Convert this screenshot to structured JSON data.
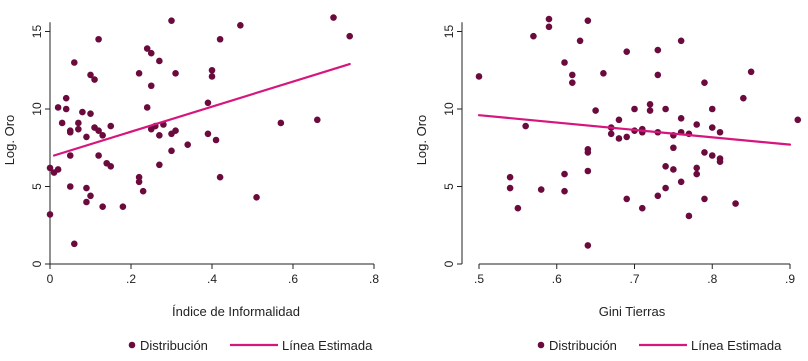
{
  "colors": {
    "points": "#6b0a3c",
    "fit_line": "#d6157d",
    "axis": "#222222"
  },
  "chart_data": [
    {
      "type": "scatter",
      "xlabel": "Índice de Informalidad",
      "ylabel": "Log. Oro",
      "xlim": [
        0,
        0.8
      ],
      "ylim": [
        0,
        16
      ],
      "x_ticks": [
        0,
        0.2,
        0.4,
        0.6,
        0.8
      ],
      "x_tick_labels": [
        "0",
        ".2",
        ".4",
        ".6",
        ".8"
      ],
      "y_ticks": [
        0,
        5,
        10,
        15
      ],
      "y_tick_labels": [
        "0",
        "5",
        "10",
        "15"
      ],
      "grid": false,
      "legend": {
        "placement": "bottom",
        "entries": [
          "Distribución",
          "Línea Estimada"
        ]
      },
      "series": [
        {
          "name": "Distribución",
          "kind": "points",
          "points": [
            [
              0.0,
              6.2
            ],
            [
              0.0,
              3.2
            ],
            [
              0.01,
              5.9
            ],
            [
              0.02,
              6.1
            ],
            [
              0.02,
              10.1
            ],
            [
              0.03,
              9.1
            ],
            [
              0.04,
              10.7
            ],
            [
              0.04,
              10.0
            ],
            [
              0.05,
              8.6
            ],
            [
              0.05,
              8.5
            ],
            [
              0.05,
              7.0
            ],
            [
              0.05,
              5.0
            ],
            [
              0.06,
              13.0
            ],
            [
              0.06,
              1.3
            ],
            [
              0.07,
              9.1
            ],
            [
              0.07,
              8.7
            ],
            [
              0.08,
              9.8
            ],
            [
              0.09,
              8.2
            ],
            [
              0.09,
              4.9
            ],
            [
              0.09,
              4.0
            ],
            [
              0.1,
              9.7
            ],
            [
              0.1,
              12.2
            ],
            [
              0.1,
              4.4
            ],
            [
              0.11,
              8.8
            ],
            [
              0.11,
              11.9
            ],
            [
              0.12,
              8.6
            ],
            [
              0.12,
              7.0
            ],
            [
              0.12,
              14.5
            ],
            [
              0.13,
              3.7
            ],
            [
              0.13,
              8.3
            ],
            [
              0.14,
              6.5
            ],
            [
              0.15,
              8.9
            ],
            [
              0.15,
              6.3
            ],
            [
              0.18,
              3.7
            ],
            [
              0.22,
              12.3
            ],
            [
              0.22,
              5.6
            ],
            [
              0.22,
              5.3
            ],
            [
              0.23,
              4.7
            ],
            [
              0.24,
              13.9
            ],
            [
              0.24,
              10.1
            ],
            [
              0.25,
              13.6
            ],
            [
              0.25,
              11.5
            ],
            [
              0.25,
              8.7
            ],
            [
              0.26,
              8.9
            ],
            [
              0.27,
              8.3
            ],
            [
              0.27,
              13.1
            ],
            [
              0.27,
              6.4
            ],
            [
              0.28,
              9.0
            ],
            [
              0.3,
              15.7
            ],
            [
              0.3,
              8.4
            ],
            [
              0.3,
              7.3
            ],
            [
              0.31,
              12.3
            ],
            [
              0.31,
              8.6
            ],
            [
              0.34,
              7.7
            ],
            [
              0.39,
              10.4
            ],
            [
              0.39,
              8.4
            ],
            [
              0.4,
              12.5
            ],
            [
              0.4,
              12.1
            ],
            [
              0.41,
              8.0
            ],
            [
              0.42,
              14.5
            ],
            [
              0.42,
              5.6
            ],
            [
              0.47,
              15.4
            ],
            [
              0.51,
              4.3
            ],
            [
              0.57,
              9.1
            ],
            [
              0.66,
              9.3
            ],
            [
              0.7,
              15.9
            ],
            [
              0.74,
              14.7
            ]
          ]
        },
        {
          "name": "Línea Estimada",
          "kind": "line",
          "points": [
            [
              0.01,
              7.0
            ],
            [
              0.74,
              12.9
            ]
          ]
        }
      ]
    },
    {
      "type": "scatter",
      "xlabel": "Gini Tierras",
      "ylabel": "Log. Oro",
      "xlim": [
        0.5,
        0.9
      ],
      "ylim": [
        0,
        16
      ],
      "x_ticks": [
        0.5,
        0.6,
        0.7,
        0.8,
        0.9
      ],
      "x_tick_labels": [
        ".5",
        ".6",
        ".7",
        ".8",
        ".9"
      ],
      "y_ticks": [
        0,
        5,
        10,
        15
      ],
      "y_tick_labels": [
        "0",
        "5",
        "10",
        "15"
      ],
      "grid": false,
      "legend": {
        "placement": "bottom",
        "entries": [
          "Distribución",
          "Línea Estimada"
        ]
      },
      "series": [
        {
          "name": "Distribución",
          "kind": "points",
          "points": [
            [
              0.5,
              12.1
            ],
            [
              0.54,
              5.6
            ],
            [
              0.54,
              4.9
            ],
            [
              0.55,
              3.6
            ],
            [
              0.56,
              8.9
            ],
            [
              0.57,
              14.7
            ],
            [
              0.58,
              4.8
            ],
            [
              0.59,
              15.8
            ],
            [
              0.59,
              15.3
            ],
            [
              0.61,
              13.0
            ],
            [
              0.61,
              5.8
            ],
            [
              0.61,
              4.7
            ],
            [
              0.62,
              12.2
            ],
            [
              0.62,
              11.7
            ],
            [
              0.63,
              14.4
            ],
            [
              0.64,
              7.4
            ],
            [
              0.64,
              7.2
            ],
            [
              0.64,
              6.0
            ],
            [
              0.64,
              15.7
            ],
            [
              0.64,
              1.2
            ],
            [
              0.65,
              9.9
            ],
            [
              0.66,
              12.3
            ],
            [
              0.67,
              8.4
            ],
            [
              0.67,
              8.8
            ],
            [
              0.68,
              8.1
            ],
            [
              0.68,
              9.3
            ],
            [
              0.69,
              13.7
            ],
            [
              0.69,
              8.2
            ],
            [
              0.69,
              4.2
            ],
            [
              0.7,
              10.0
            ],
            [
              0.7,
              8.6
            ],
            [
              0.71,
              8.7
            ],
            [
              0.71,
              3.6
            ],
            [
              0.71,
              8.5
            ],
            [
              0.72,
              10.3
            ],
            [
              0.72,
              9.9
            ],
            [
              0.73,
              13.8
            ],
            [
              0.73,
              12.2
            ],
            [
              0.73,
              8.5
            ],
            [
              0.73,
              4.4
            ],
            [
              0.74,
              10.0
            ],
            [
              0.74,
              4.9
            ],
            [
              0.74,
              6.3
            ],
            [
              0.75,
              7.5
            ],
            [
              0.75,
              6.1
            ],
            [
              0.75,
              8.3
            ],
            [
              0.76,
              14.4
            ],
            [
              0.76,
              9.4
            ],
            [
              0.76,
              8.5
            ],
            [
              0.76,
              5.3
            ],
            [
              0.77,
              8.4
            ],
            [
              0.77,
              3.1
            ],
            [
              0.78,
              6.2
            ],
            [
              0.78,
              5.8
            ],
            [
              0.78,
              9.0
            ],
            [
              0.79,
              7.2
            ],
            [
              0.79,
              4.2
            ],
            [
              0.79,
              11.7
            ],
            [
              0.8,
              10.0
            ],
            [
              0.8,
              8.8
            ],
            [
              0.8,
              7.0
            ],
            [
              0.81,
              6.8
            ],
            [
              0.81,
              6.6
            ],
            [
              0.81,
              8.5
            ],
            [
              0.83,
              3.9
            ],
            [
              0.84,
              10.7
            ],
            [
              0.85,
              12.4
            ],
            [
              0.91,
              9.3
            ]
          ]
        },
        {
          "name": "Línea Estimada",
          "kind": "line",
          "points": [
            [
              0.5,
              9.6
            ],
            [
              0.9,
              7.7
            ]
          ]
        }
      ]
    }
  ]
}
